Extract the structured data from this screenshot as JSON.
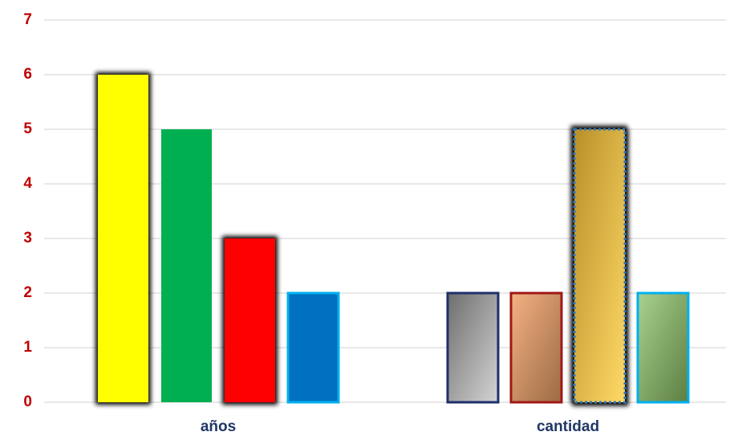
{
  "chart_data": {
    "type": "bar",
    "categories": [
      "años",
      "cantidad"
    ],
    "series": [
      {
        "values": [
          6,
          2
        ],
        "colors": [
          [
            "#ffff00"
          ],
          [
            "#6e6e6e",
            "#d4d4d4"
          ]
        ],
        "borders": [
          null,
          "#1f2f6a"
        ],
        "glow": [
          "#ffff40",
          null
        ]
      },
      {
        "values": [
          5,
          2
        ],
        "colors": [
          [
            "#00b050"
          ],
          [
            "#f4b183",
            "#9c6a44"
          ]
        ],
        "borders": [
          null,
          "#a01818"
        ],
        "glow": [
          null,
          null
        ]
      },
      {
        "values": [
          3,
          5
        ],
        "colors": [
          [
            "#ff0000"
          ],
          [
            "#b8902a",
            "#ffd966"
          ]
        ],
        "borders": [
          null,
          "#2e75b6"
        ],
        "glow": [
          "#f4b183",
          "#f4b183"
        ]
      },
      {
        "values": [
          2,
          2
        ],
        "colors": [
          [
            "#0070c0"
          ],
          [
            "#a9d18e",
            "#5b7f42"
          ]
        ],
        "borders": [
          "#00b0f0",
          "#00b0f0"
        ],
        "glow": [
          null,
          null
        ]
      }
    ],
    "ylim": [
      0,
      7
    ],
    "yticks": [
      0,
      1,
      2,
      3,
      4,
      5,
      6,
      7
    ],
    "grid": true
  }
}
